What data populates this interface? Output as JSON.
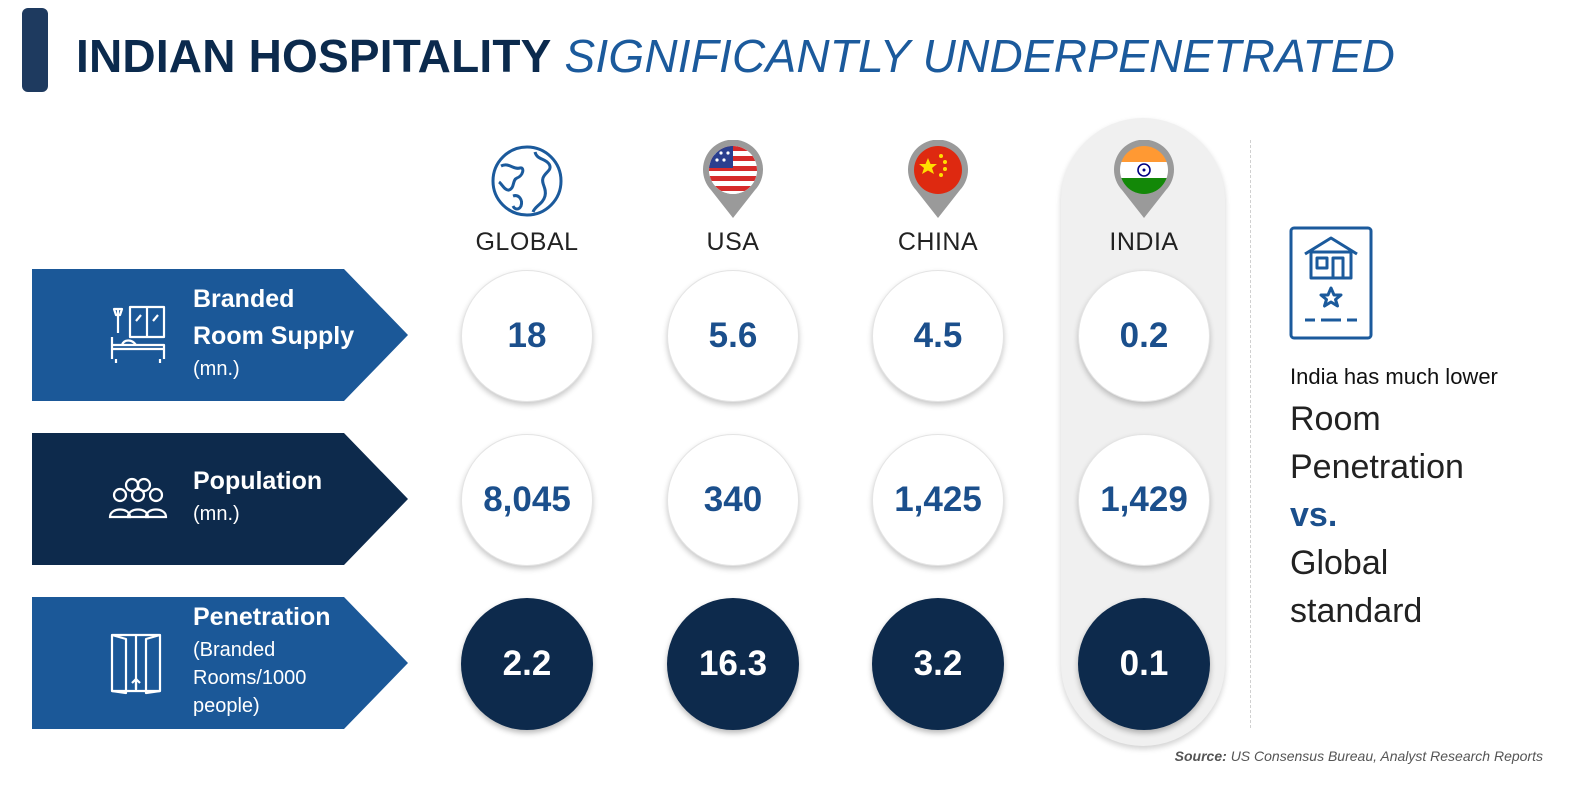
{
  "title": {
    "bold": "INDIAN HOSPITALITY",
    "italic": "SIGNIFICANTLY UNDERPENETRATED"
  },
  "columns": [
    {
      "label": "GLOBAL",
      "icon": "globe-icon"
    },
    {
      "label": "USA",
      "icon": "usa-flag-pin-icon"
    },
    {
      "label": "CHINA",
      "icon": "china-flag-pin-icon"
    },
    {
      "label": "INDIA",
      "icon": "india-flag-pin-icon"
    }
  ],
  "rows": [
    {
      "title_line1": "Branded",
      "title_line2": "Room Supply",
      "sub": "(mn.)",
      "icon": "hotel-room-icon",
      "values": [
        "18",
        "5.6",
        "4.5",
        "0.2"
      ]
    },
    {
      "title_line1": "Population",
      "sub": "(mn.)",
      "icon": "people-group-icon",
      "values": [
        "8,045",
        "340",
        "1,425",
        "1,429"
      ]
    },
    {
      "title_line1": "Penetration",
      "sub_line1": "(Branded",
      "sub_line2": "Rooms/1000",
      "sub_line3": "people)",
      "icon": "door-icon",
      "values": [
        "2.2",
        "16.3",
        "3.2",
        "0.1"
      ]
    }
  ],
  "side_note": {
    "intro": "India has much lower",
    "line1": "Room",
    "line2": "Penetration",
    "vs": "vs.",
    "line3": "Global",
    "line4": "standard",
    "icon": "hotel-card-icon"
  },
  "source": {
    "label": "Source:",
    "text": "US Consensus Bureau, Analyst Research Reports"
  },
  "colors": {
    "navy": "#0d2a4c",
    "blue": "#1b5a9c",
    "banner_blue": "#1b5898",
    "banner_dark": "#0d2a4c"
  }
}
